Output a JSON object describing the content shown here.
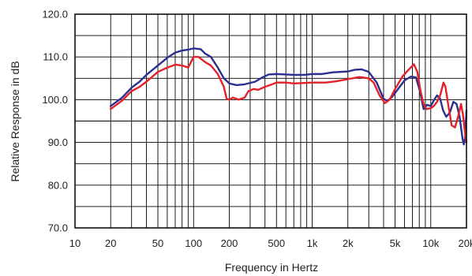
{
  "chart_data": {
    "type": "line",
    "title": "",
    "xlabel": "Frequency in Hertz",
    "ylabel": "Relative Response in dB",
    "x_scale": "log",
    "xlim": [
      10,
      20000
    ],
    "ylim": [
      70,
      120
    ],
    "grid": true,
    "legend": "none",
    "x_tick_labels": [
      {
        "value": 10,
        "label": "10"
      },
      {
        "value": 20,
        "label": "20"
      },
      {
        "value": 50,
        "label": "50"
      },
      {
        "value": 100,
        "label": "100"
      },
      {
        "value": 200,
        "label": "200"
      },
      {
        "value": 500,
        "label": "500"
      },
      {
        "value": 1000,
        "label": "1k"
      },
      {
        "value": 2000,
        "label": "2k"
      },
      {
        "value": 5000,
        "label": "5k"
      },
      {
        "value": 10000,
        "label": "10k"
      },
      {
        "value": 20000,
        "label": "20k"
      }
    ],
    "y_tick_labels": [
      {
        "value": 70,
        "label": "70.0"
      },
      {
        "value": 80,
        "label": "80.0"
      },
      {
        "value": 90,
        "label": "90.0"
      },
      {
        "value": 100,
        "label": "100.0"
      },
      {
        "value": 110,
        "label": "110.0"
      },
      {
        "value": 120,
        "label": "120.0"
      }
    ],
    "series": [
      {
        "color": "#2b2f8f",
        "points": [
          [
            20,
            98.5
          ],
          [
            25,
            100.5
          ],
          [
            30,
            102.8
          ],
          [
            35,
            104.2
          ],
          [
            40,
            105.8
          ],
          [
            50,
            108.0
          ],
          [
            60,
            109.8
          ],
          [
            70,
            111.0
          ],
          [
            80,
            111.5
          ],
          [
            90,
            111.7
          ],
          [
            100,
            112.0
          ],
          [
            115,
            111.8
          ],
          [
            125,
            110.8
          ],
          [
            140,
            110.0
          ],
          [
            160,
            107.5
          ],
          [
            180,
            105.0
          ],
          [
            200,
            103.8
          ],
          [
            230,
            103.4
          ],
          [
            270,
            103.6
          ],
          [
            330,
            104.2
          ],
          [
            380,
            105.2
          ],
          [
            430,
            105.9
          ],
          [
            500,
            106.0
          ],
          [
            600,
            105.9
          ],
          [
            700,
            105.8
          ],
          [
            850,
            105.8
          ],
          [
            1000,
            106.0
          ],
          [
            1200,
            106.0
          ],
          [
            1500,
            106.4
          ],
          [
            2000,
            106.6
          ],
          [
            2300,
            107.0
          ],
          [
            2600,
            107.1
          ],
          [
            3000,
            106.5
          ],
          [
            3500,
            104.0
          ],
          [
            4000,
            100.2
          ],
          [
            4300,
            99.7
          ],
          [
            4700,
            100.6
          ],
          [
            5300,
            102.5
          ],
          [
            6000,
            104.5
          ],
          [
            6800,
            105.4
          ],
          [
            7500,
            105.2
          ],
          [
            8100,
            102.0
          ],
          [
            8700,
            97.8
          ],
          [
            9300,
            98.8
          ],
          [
            10000,
            98.5
          ],
          [
            10700,
            100.0
          ],
          [
            11300,
            101.0
          ],
          [
            12000,
            100.2
          ],
          [
            12700,
            97.5
          ],
          [
            13500,
            96.0
          ],
          [
            14500,
            97.0
          ],
          [
            15500,
            99.5
          ],
          [
            16500,
            99.0
          ],
          [
            17500,
            96.0
          ],
          [
            18500,
            91.0
          ],
          [
            19000,
            89.5
          ],
          [
            19500,
            91.0
          ],
          [
            20000,
            97.5
          ]
        ]
      },
      {
        "color": "#e3222a",
        "points": [
          [
            20,
            97.8
          ],
          [
            25,
            99.8
          ],
          [
            30,
            102.0
          ],
          [
            35,
            103.0
          ],
          [
            40,
            104.2
          ],
          [
            50,
            106.5
          ],
          [
            60,
            107.5
          ],
          [
            70,
            108.2
          ],
          [
            80,
            108.0
          ],
          [
            90,
            107.5
          ],
          [
            100,
            110.0
          ],
          [
            110,
            110.0
          ],
          [
            125,
            108.8
          ],
          [
            140,
            108.0
          ],
          [
            160,
            106.0
          ],
          [
            180,
            103.0
          ],
          [
            190,
            100.2
          ],
          [
            200,
            100.0
          ],
          [
            215,
            100.5
          ],
          [
            240,
            100.0
          ],
          [
            270,
            100.5
          ],
          [
            290,
            102.0
          ],
          [
            320,
            102.5
          ],
          [
            350,
            102.3
          ],
          [
            400,
            103.0
          ],
          [
            450,
            103.5
          ],
          [
            500,
            104.0
          ],
          [
            600,
            104.0
          ],
          [
            700,
            103.8
          ],
          [
            850,
            103.9
          ],
          [
            1000,
            104.0
          ],
          [
            1300,
            104.0
          ],
          [
            1600,
            104.3
          ],
          [
            2000,
            104.8
          ],
          [
            2500,
            105.3
          ],
          [
            3000,
            105.0
          ],
          [
            3300,
            104.0
          ],
          [
            3700,
            101.0
          ],
          [
            4100,
            99.2
          ],
          [
            4500,
            100.0
          ],
          [
            5000,
            102.5
          ],
          [
            5800,
            105.5
          ],
          [
            6500,
            107.0
          ],
          [
            7200,
            108.3
          ],
          [
            7700,
            106.5
          ],
          [
            8200,
            102.0
          ],
          [
            8700,
            99.0
          ],
          [
            9200,
            97.8
          ],
          [
            10000,
            98.0
          ],
          [
            10600,
            98.5
          ],
          [
            11300,
            99.5
          ],
          [
            12000,
            101.0
          ],
          [
            12800,
            104.0
          ],
          [
            13300,
            103.0
          ],
          [
            14000,
            99.0
          ],
          [
            15000,
            94.0
          ],
          [
            16000,
            93.5
          ],
          [
            17000,
            96.0
          ],
          [
            18000,
            99.0
          ],
          [
            18700,
            96.5
          ],
          [
            19300,
            93.0
          ],
          [
            20000,
            90.0
          ]
        ]
      }
    ]
  }
}
